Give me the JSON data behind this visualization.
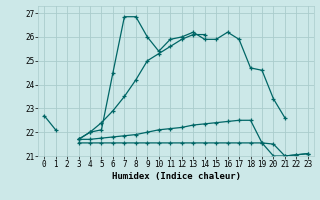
{
  "xlabel": "Humidex (Indice chaleur)",
  "x_values": [
    0,
    1,
    2,
    3,
    4,
    5,
    6,
    7,
    8,
    9,
    10,
    11,
    12,
    13,
    14,
    15,
    16,
    17,
    18,
    19,
    20,
    21,
    22,
    23
  ],
  "line1_y": [
    22.7,
    22.1,
    null,
    21.7,
    22.0,
    22.1,
    24.5,
    26.85,
    26.85,
    26.0,
    25.4,
    25.9,
    26.0,
    26.2,
    25.9,
    25.9,
    26.2,
    25.9,
    24.7,
    24.6,
    23.4,
    22.6,
    null,
    null
  ],
  "line2_y": [
    null,
    null,
    null,
    21.7,
    22.0,
    22.4,
    22.9,
    23.5,
    24.2,
    25.0,
    25.3,
    25.6,
    25.9,
    26.1,
    26.1,
    null,
    null,
    null,
    null,
    null,
    null,
    null,
    null,
    null
  ],
  "line3_y": [
    null,
    null,
    null,
    21.55,
    21.55,
    21.55,
    21.55,
    21.55,
    21.55,
    21.55,
    21.55,
    21.55,
    21.55,
    21.55,
    21.55,
    21.55,
    21.55,
    21.55,
    21.55,
    21.55,
    21.0,
    21.0,
    21.05,
    21.1
  ],
  "line4_y": [
    null,
    null,
    null,
    21.7,
    21.7,
    21.75,
    21.8,
    21.85,
    21.9,
    22.0,
    22.1,
    22.15,
    22.2,
    22.3,
    22.35,
    22.4,
    22.45,
    22.5,
    22.5,
    21.55,
    21.5,
    21.0,
    21.05,
    21.1
  ],
  "bg_color": "#cce8e8",
  "line_color": "#006666",
  "grid_color": "#aacccc",
  "ylim": [
    21.0,
    27.3
  ],
  "xlim": [
    -0.5,
    23.5
  ],
  "yticks": [
    21,
    22,
    23,
    24,
    25,
    26,
    27
  ],
  "xticks": [
    0,
    1,
    2,
    3,
    4,
    5,
    6,
    7,
    8,
    9,
    10,
    11,
    12,
    13,
    14,
    15,
    16,
    17,
    18,
    19,
    20,
    21,
    22,
    23
  ]
}
